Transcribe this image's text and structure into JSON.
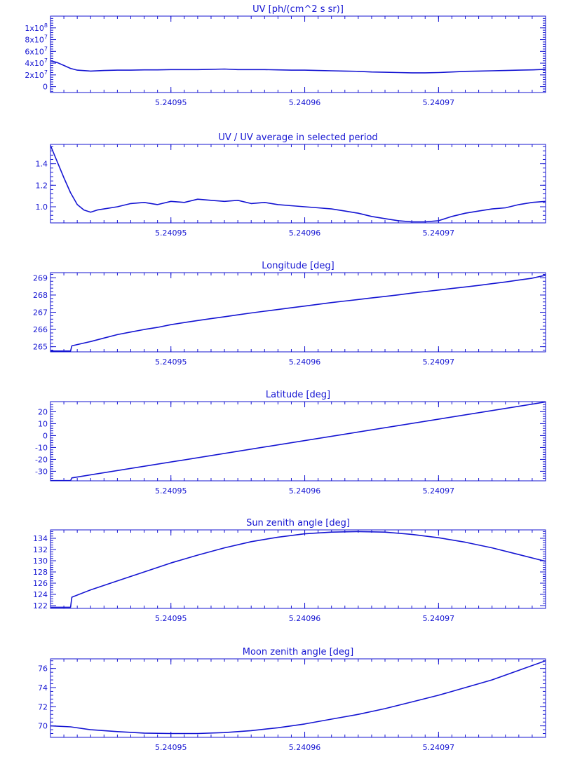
{
  "colors": {
    "ink": "#1414d2",
    "background": "#ffffff"
  },
  "chart_data": [
    {
      "type": "line",
      "title": "UV [ph/(cm^2 s sr)]",
      "xlim": [
        5.240941,
        5.240978
      ],
      "xticks": [
        "5.24095",
        "5.24096",
        "5.24097"
      ],
      "ylim": [
        -10000000,
        120000000
      ],
      "yticks": [
        {
          "value": 0,
          "label": "0"
        },
        {
          "value": 20000000,
          "label": "2x10",
          "exp": "7"
        },
        {
          "value": 40000000,
          "label": "4x10",
          "exp": "7"
        },
        {
          "value": 60000000,
          "label": "6x10",
          "exp": "7"
        },
        {
          "value": 80000000,
          "label": "8x10",
          "exp": "7"
        },
        {
          "value": 100000000,
          "label": "1x10",
          "exp": "8"
        }
      ],
      "series": [
        {
          "x": [
            5.240941,
            5.2409415,
            5.240942,
            5.2409425,
            5.240943,
            5.240944,
            5.240945,
            5.240946,
            5.240947,
            5.240948,
            5.240949,
            5.24095,
            5.240951,
            5.240952,
            5.240953,
            5.240954,
            5.240955,
            5.240956,
            5.240957,
            5.240958,
            5.240959,
            5.24096,
            5.240961,
            5.240962,
            5.240963,
            5.240964,
            5.240965,
            5.240966,
            5.240967,
            5.240968,
            5.240969,
            5.24097,
            5.240971,
            5.240972,
            5.240973,
            5.240974,
            5.240975,
            5.240976,
            5.240977,
            5.240978
          ],
          "y": [
            44000000,
            41000000,
            36000000,
            31000000,
            28000000,
            26500000,
            27500000,
            28000000,
            28000000,
            28500000,
            28500000,
            29000000,
            29000000,
            29000000,
            29500000,
            30000000,
            29000000,
            29000000,
            29000000,
            28500000,
            28000000,
            28000000,
            27500000,
            27000000,
            26500000,
            26000000,
            25000000,
            24500000,
            24000000,
            23500000,
            23500000,
            24000000,
            25000000,
            26000000,
            26500000,
            27000000,
            27500000,
            28000000,
            28500000,
            29500000
          ]
        }
      ]
    },
    {
      "type": "line",
      "title": "UV / UV average in selected period",
      "xlim": [
        5.240941,
        5.240978
      ],
      "xticks": [
        "5.24095",
        "5.24096",
        "5.24097"
      ],
      "ylim": [
        0.85,
        1.58
      ],
      "yticks": [
        {
          "value": 1.0,
          "label": "1.0"
        },
        {
          "value": 1.2,
          "label": "1.2"
        },
        {
          "value": 1.4,
          "label": "1.4"
        }
      ],
      "series": [
        {
          "x": [
            5.240941,
            5.2409415,
            5.240942,
            5.2409425,
            5.240943,
            5.2409435,
            5.240944,
            5.2409445,
            5.240945,
            5.240946,
            5.240947,
            5.240948,
            5.240949,
            5.24095,
            5.240951,
            5.240952,
            5.240953,
            5.240954,
            5.240955,
            5.240956,
            5.240957,
            5.240958,
            5.240959,
            5.24096,
            5.240961,
            5.240962,
            5.240963,
            5.240964,
            5.240965,
            5.240966,
            5.240967,
            5.240968,
            5.240969,
            5.24097,
            5.240971,
            5.240972,
            5.240973,
            5.240974,
            5.240975,
            5.240976,
            5.240977,
            5.240978
          ],
          "y": [
            1.57,
            1.42,
            1.27,
            1.13,
            1.02,
            0.97,
            0.95,
            0.97,
            0.98,
            1.0,
            1.03,
            1.04,
            1.02,
            1.05,
            1.04,
            1.07,
            1.06,
            1.05,
            1.06,
            1.03,
            1.04,
            1.02,
            1.01,
            1.0,
            0.99,
            0.98,
            0.96,
            0.94,
            0.91,
            0.89,
            0.87,
            0.86,
            0.86,
            0.87,
            0.91,
            0.94,
            0.96,
            0.98,
            0.99,
            1.02,
            1.04,
            1.05
          ]
        }
      ]
    },
    {
      "type": "line",
      "title": "Longitude [deg]",
      "xlim": [
        5.240941,
        5.240978
      ],
      "xticks": [
        "5.24095",
        "5.24096",
        "5.24097"
      ],
      "ylim": [
        264.7,
        269.3
      ],
      "yticks": [
        {
          "value": 265,
          "label": "265"
        },
        {
          "value": 266,
          "label": "266"
        },
        {
          "value": 267,
          "label": "267"
        },
        {
          "value": 268,
          "label": "268"
        },
        {
          "value": 269,
          "label": "269"
        }
      ],
      "series": [
        {
          "x": [
            5.240941,
            5.2409425,
            5.2409426,
            5.240944,
            5.240945,
            5.240946,
            5.240947,
            5.240948,
            5.240949,
            5.24095,
            5.240951,
            5.240952,
            5.240953,
            5.240954,
            5.240955,
            5.240956,
            5.240957,
            5.240958,
            5.240959,
            5.24096,
            5.240961,
            5.240962,
            5.240963,
            5.240964,
            5.240965,
            5.240966,
            5.240967,
            5.240968,
            5.240969,
            5.24097,
            5.240971,
            5.240972,
            5.240973,
            5.240974,
            5.240975,
            5.240976,
            5.240977,
            5.240978
          ],
          "y": [
            264.75,
            264.75,
            265.05,
            265.3,
            265.5,
            265.7,
            265.85,
            266.0,
            266.12,
            266.28,
            266.4,
            266.52,
            266.63,
            266.74,
            266.85,
            266.96,
            267.06,
            267.16,
            267.26,
            267.36,
            267.46,
            267.56,
            267.65,
            267.74,
            267.83,
            267.92,
            268.01,
            268.11,
            268.2,
            268.29,
            268.38,
            268.47,
            268.56,
            268.66,
            268.76,
            268.87,
            268.98,
            269.15
          ]
        }
      ]
    },
    {
      "type": "line",
      "title": "Latitude [deg]",
      "xlim": [
        5.240941,
        5.240978
      ],
      "xticks": [
        "5.24095",
        "5.24096",
        "5.24097"
      ],
      "ylim": [
        -38,
        28.5
      ],
      "yticks": [
        {
          "value": -30,
          "label": "-30"
        },
        {
          "value": -20,
          "label": "-20"
        },
        {
          "value": -10,
          "label": "-10"
        },
        {
          "value": 0,
          "label": "0"
        },
        {
          "value": 10,
          "label": "10"
        },
        {
          "value": 20,
          "label": "20"
        }
      ],
      "series": [
        {
          "x": [
            5.240941,
            5.2409425,
            5.2409426,
            5.240978
          ],
          "y": [
            -37.8,
            -37.8,
            -35.5,
            28.2
          ]
        }
      ]
    },
    {
      "type": "line",
      "title": "Sun zenith angle [deg]",
      "xlim": [
        5.240941,
        5.240978
      ],
      "xticks": [
        "5.24095",
        "5.24096",
        "5.24097"
      ],
      "ylim": [
        121.5,
        135.5
      ],
      "yticks": [
        {
          "value": 122,
          "label": "122"
        },
        {
          "value": 124,
          "label": "124"
        },
        {
          "value": 126,
          "label": "126"
        },
        {
          "value": 128,
          "label": "128"
        },
        {
          "value": 130,
          "label": "130"
        },
        {
          "value": 132,
          "label": "132"
        },
        {
          "value": 134,
          "label": "134"
        }
      ],
      "series": [
        {
          "x": [
            5.240941,
            5.2409425,
            5.2409426,
            5.240944,
            5.240946,
            5.240948,
            5.24095,
            5.240952,
            5.240954,
            5.240956,
            5.240958,
            5.24096,
            5.240962,
            5.240964,
            5.240966,
            5.240968,
            5.24097,
            5.240972,
            5.240974,
            5.240976,
            5.240978
          ],
          "y": [
            121.7,
            121.7,
            123.5,
            124.8,
            126.4,
            128.0,
            129.6,
            131.0,
            132.3,
            133.4,
            134.2,
            134.8,
            135.1,
            135.2,
            135.1,
            134.7,
            134.1,
            133.3,
            132.3,
            131.1,
            129.9
          ]
        }
      ]
    },
    {
      "type": "line",
      "title": "Moon zenith angle [deg]",
      "xlim": [
        5.240941,
        5.240978
      ],
      "xticks": [
        "5.24095",
        "5.24096",
        "5.24097"
      ],
      "ylim": [
        68.8,
        77.0
      ],
      "yticks": [
        {
          "value": 70,
          "label": "70"
        },
        {
          "value": 72,
          "label": "72"
        },
        {
          "value": 74,
          "label": "74"
        },
        {
          "value": 76,
          "label": "76"
        }
      ],
      "series": [
        {
          "x": [
            5.240941,
            5.2409425,
            5.240944,
            5.240946,
            5.240948,
            5.24095,
            5.240952,
            5.240954,
            5.240956,
            5.240958,
            5.24096,
            5.240962,
            5.240964,
            5.240966,
            5.240968,
            5.24097,
            5.240972,
            5.240974,
            5.240976,
            5.240978
          ],
          "y": [
            70.0,
            69.9,
            69.6,
            69.4,
            69.25,
            69.2,
            69.2,
            69.3,
            69.5,
            69.8,
            70.2,
            70.7,
            71.2,
            71.8,
            72.5,
            73.2,
            74.0,
            74.8,
            75.8,
            76.8
          ]
        }
      ]
    }
  ]
}
